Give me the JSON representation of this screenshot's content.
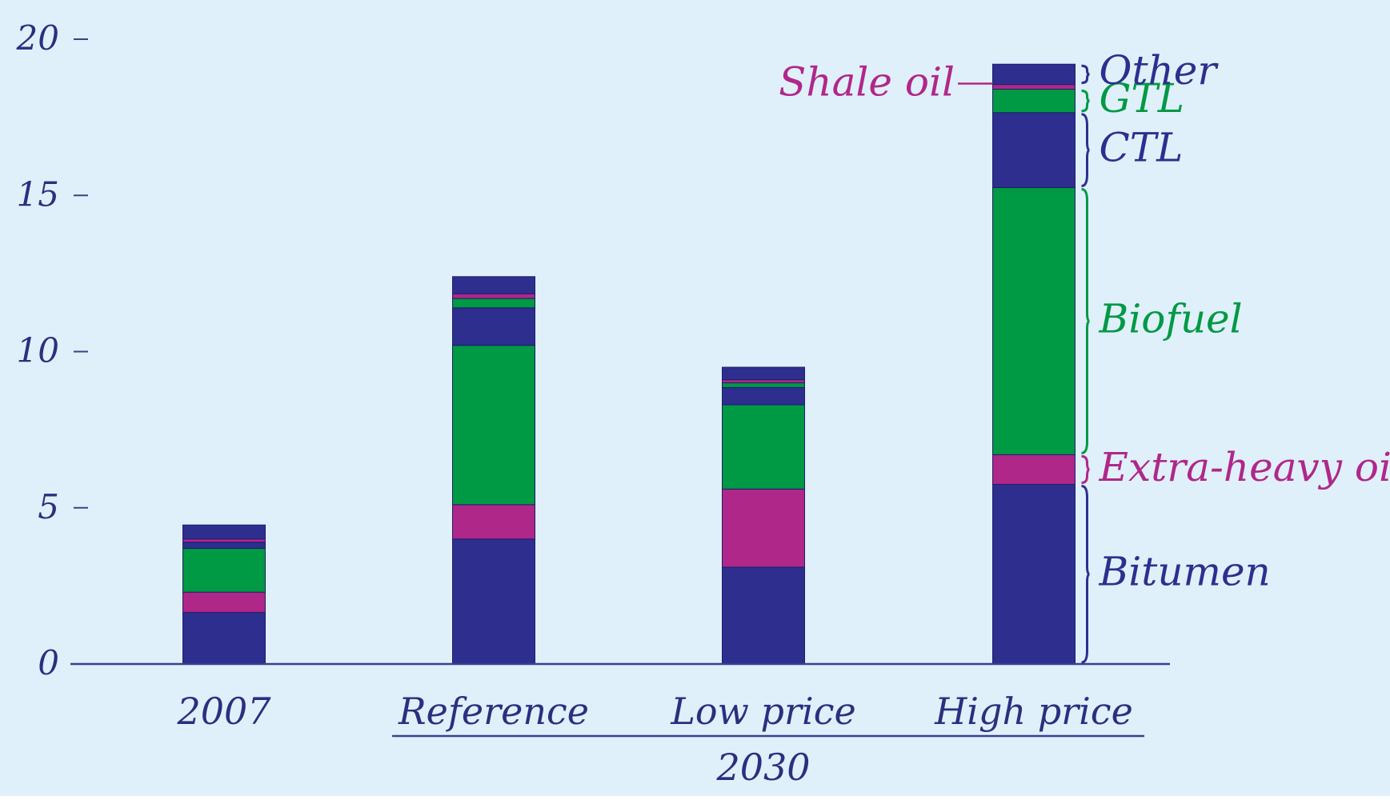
{
  "colors": {
    "background": "#dff0fa",
    "axis": "#3b3f8f",
    "text": "#2b2f7f",
    "bitumen": "#2e2e8f",
    "extra_heavy": "#b0278a",
    "biofuel": "#009944",
    "ctl": "#2e2e8f",
    "gtl": "#009944",
    "shale": "#b0278a",
    "other": "#2e2e8f"
  },
  "chart_data": {
    "type": "bar",
    "stacked": true,
    "categories": [
      "2007",
      "Reference",
      "Low price",
      "High price"
    ],
    "group_label": "2030",
    "grouped_categories": [
      "Reference",
      "Low price",
      "High price"
    ],
    "ylim": [
      0,
      20
    ],
    "yticks": [
      "0",
      "5",
      "10",
      "15",
      "20"
    ],
    "xlabel": "",
    "ylabel": "",
    "title": "",
    "grid": false,
    "series": [
      {
        "name": "Bitumen",
        "color_key": "bitumen",
        "values": [
          1.65,
          4.0,
          3.1,
          5.75
        ]
      },
      {
        "name": "Extra-heavy oil",
        "color_key": "extra_heavy",
        "values": [
          0.65,
          1.1,
          2.5,
          0.95
        ]
      },
      {
        "name": "Biofuel",
        "color_key": "biofuel",
        "values": [
          1.4,
          5.1,
          2.7,
          8.55
        ]
      },
      {
        "name": "CTL",
        "color_key": "ctl",
        "values": [
          0.2,
          1.2,
          0.55,
          2.4
        ]
      },
      {
        "name": "GTL",
        "color_key": "gtl",
        "values": [
          0.0,
          0.3,
          0.15,
          0.75
        ]
      },
      {
        "name": "Shale oil",
        "color_key": "shale",
        "values": [
          0.1,
          0.15,
          0.1,
          0.15
        ]
      },
      {
        "name": "Other",
        "color_key": "other",
        "values": [
          0.45,
          0.55,
          0.4,
          0.65
        ]
      }
    ]
  }
}
